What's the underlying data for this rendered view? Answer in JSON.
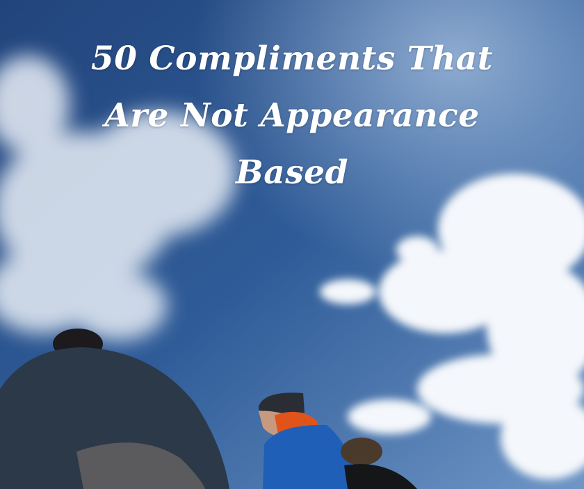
{
  "title": {
    "lines": [
      "50 Compliments That",
      "Are Not Appearance",
      "Based"
    ]
  },
  "colors": {
    "sky_dark": "#23467f",
    "sky_light": "#7fa3cf",
    "cloud": "#ffffff",
    "jacket_blue": "#1f5fb8",
    "hood_orange": "#e0541c"
  }
}
